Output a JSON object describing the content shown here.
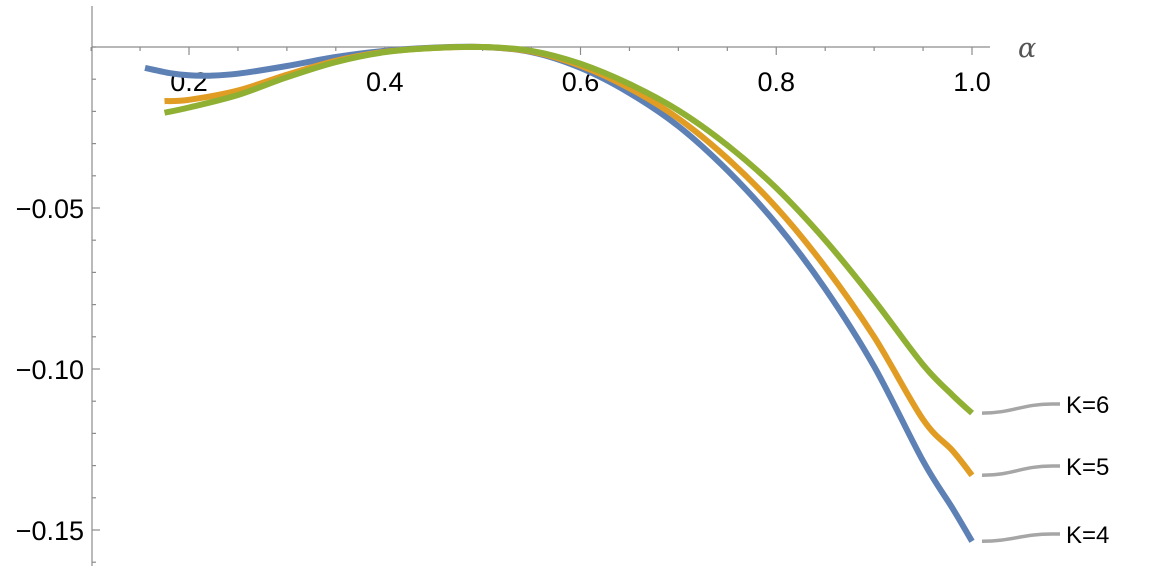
{
  "chart_data": {
    "type": "line",
    "title": "",
    "xlabel": "α",
    "ylabel": "",
    "xlim": [
      0.1,
      1.0
    ],
    "ylim": [
      -0.16,
      0.0
    ],
    "x_ticks": [
      {
        "value": 0.2,
        "label": "0.2"
      },
      {
        "value": 0.4,
        "label": "0.4"
      },
      {
        "value": 0.6,
        "label": "0.6"
      },
      {
        "value": 0.8,
        "label": "0.8"
      },
      {
        "value": 1.0,
        "label": "1.0"
      }
    ],
    "y_ticks": [
      {
        "value": -0.05,
        "label": "−0.05"
      },
      {
        "value": -0.1,
        "label": "−0.10"
      },
      {
        "value": -0.15,
        "label": "−0.15"
      }
    ],
    "grid": false,
    "legend": "inline labels at right end of curves",
    "series": [
      {
        "name": "K=4",
        "color": "#5E81B5",
        "x": [
          0.155,
          0.18,
          0.2,
          0.22,
          0.25,
          0.3,
          0.35,
          0.4,
          0.45,
          0.5,
          0.55,
          0.6,
          0.65,
          0.7,
          0.75,
          0.8,
          0.85,
          0.9,
          0.95,
          0.98,
          1.0
        ],
        "y": [
          -0.0065,
          -0.0081,
          -0.0088,
          -0.0089,
          -0.0083,
          -0.0059,
          -0.0031,
          -0.0012,
          -0.0002,
          0.0,
          -0.0016,
          -0.0065,
          -0.0143,
          -0.0246,
          -0.0383,
          -0.0549,
          -0.0751,
          -0.0992,
          -0.1286,
          -0.1432,
          -0.1535
        ]
      },
      {
        "name": "K=5",
        "color": "#E19C24",
        "x": [
          0.175,
          0.2,
          0.25,
          0.3,
          0.35,
          0.4,
          0.45,
          0.5,
          0.55,
          0.6,
          0.65,
          0.7,
          0.75,
          0.8,
          0.85,
          0.9,
          0.95,
          0.98,
          1.0
        ],
        "y": [
          -0.0168,
          -0.0164,
          -0.0135,
          -0.0086,
          -0.0043,
          -0.0015,
          -0.0003,
          0.0,
          -0.0014,
          -0.0058,
          -0.0128,
          -0.0222,
          -0.0346,
          -0.0498,
          -0.0683,
          -0.09,
          -0.1157,
          -0.1253,
          -0.133
        ]
      },
      {
        "name": "K=6",
        "color": "#8FB032",
        "x": [
          0.175,
          0.2,
          0.25,
          0.3,
          0.35,
          0.4,
          0.45,
          0.5,
          0.55,
          0.6,
          0.65,
          0.7,
          0.75,
          0.8,
          0.85,
          0.9,
          0.95,
          0.98,
          1.0
        ],
        "y": [
          -0.0204,
          -0.0188,
          -0.0149,
          -0.0094,
          -0.0047,
          -0.0016,
          -0.0003,
          0.0,
          -0.0012,
          -0.0052,
          -0.0115,
          -0.0197,
          -0.0305,
          -0.0438,
          -0.06,
          -0.0786,
          -0.0987,
          -0.1081,
          -0.1137
        ]
      }
    ]
  }
}
